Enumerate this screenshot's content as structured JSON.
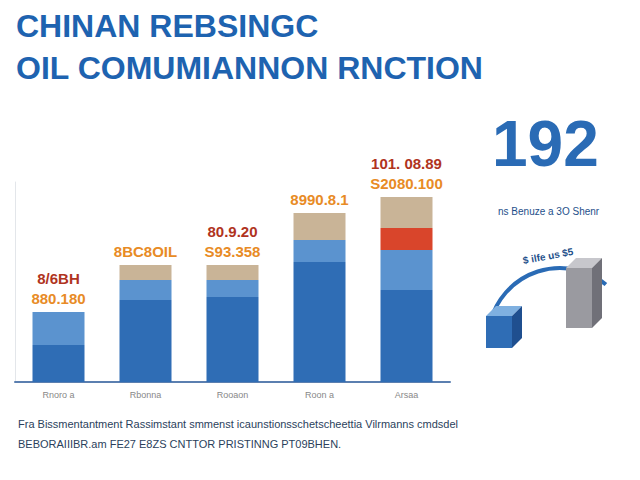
{
  "chart_data": {
    "type": "bar",
    "title": "CHINAN REBSINGC\nOIL COMUMIANNON RNCTION",
    "categories": [
      "Rnoro a",
      "Rbonna",
      "Rooaon",
      "Roon a",
      "Arsaa"
    ],
    "series": [
      {
        "color": "#2f6db5",
        "values": [
          37,
          82,
          85,
          120,
          92
        ]
      },
      {
        "color": "#5b93cf",
        "values": [
          33,
          20,
          17,
          22,
          40
        ]
      },
      {
        "color": "#d9452b",
        "values": [
          0,
          0,
          0,
          0,
          22
        ]
      },
      {
        "color": "#c9b497",
        "values": [
          0,
          15,
          15,
          27,
          31
        ]
      }
    ],
    "stacked": true,
    "ylim": [
      0,
      200
    ],
    "grid": false,
    "tick_labels": "x",
    "bar_annotations": [
      [
        "8/6BH",
        "880.180"
      ],
      [
        "8BC8OIL"
      ],
      [
        "80.9.20",
        "S93.358"
      ],
      [
        "8990.8.1"
      ],
      [
        "101. 08.89",
        "S2080.100"
      ]
    ],
    "side_number": "192",
    "side_caption": "ns Benuze a 3O Shenr",
    "arc_label": "$ ilfe us $5",
    "footnote": [
      "Fra Bissmentantment Rassimstant smmenst icaunstionsschetscheettia Vilrmanns cmdsdel",
      "BEBORAIIIBR.am FE27 E8ZS CNTTOR PRISTINNG PT09BHEN."
    ]
  }
}
